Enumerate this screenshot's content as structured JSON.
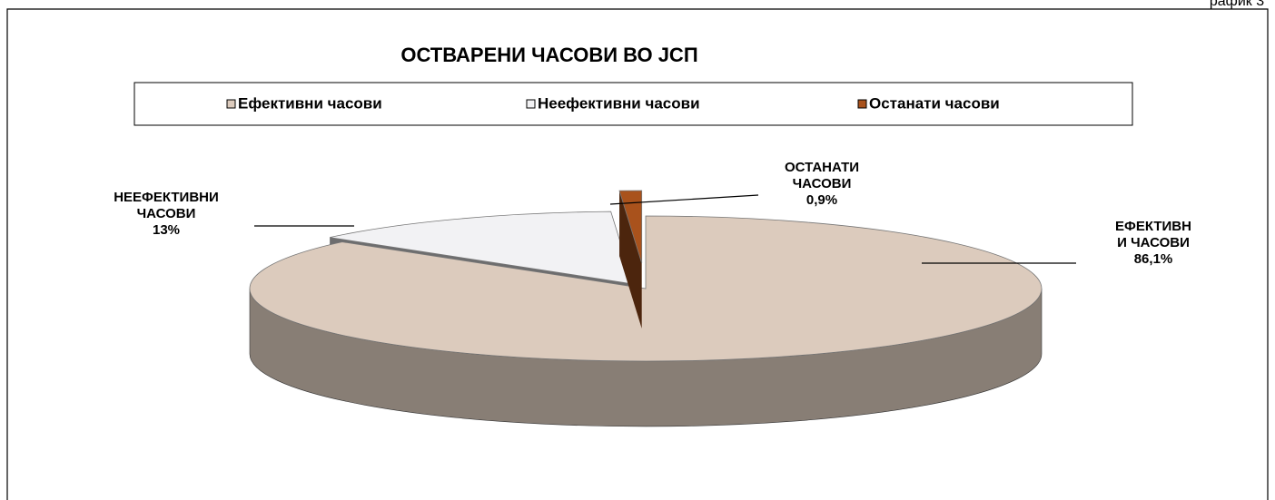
{
  "header_text": "рафик 3",
  "chart_data": {
    "type": "pie",
    "title": "ОСТВАРЕНИ ЧАСОВИ ВО ЈСП",
    "categories": [
      "Ефективни часови",
      "Неефективни часови",
      "Останати часови"
    ],
    "values": [
      86.1,
      13,
      0.9
    ],
    "value_labels": [
      "86,1%",
      "13%",
      "0,9%"
    ],
    "label_lines": [
      [
        "ЕФЕКТИВН",
        "И ЧАСОВИ"
      ],
      [
        "НЕЕФЕКТИВНИ",
        "ЧАСОВИ"
      ],
      [
        "ОСТАНАТИ",
        "ЧАСОВИ"
      ]
    ],
    "colors": [
      "#dccbbd",
      "#f2f2f4",
      "#a9521c"
    ],
    "legend": "top"
  }
}
